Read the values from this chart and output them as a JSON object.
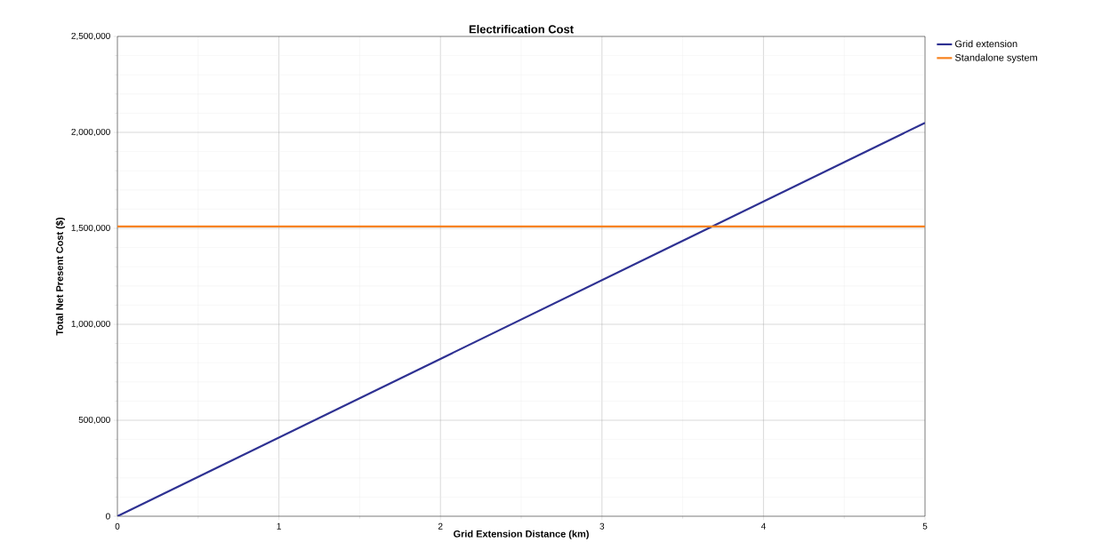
{
  "chart_data": {
    "type": "line",
    "title": "Electrification Cost",
    "xlabel": "Grid Extension Distance (km)",
    "ylabel": "Total Net Present Cost ($)",
    "x": [
      0,
      5
    ],
    "series": [
      {
        "name": "Grid extension",
        "color": "#2e3192",
        "values": [
          0,
          2050000
        ]
      },
      {
        "name": "Standalone system",
        "color": "#f7821e",
        "values": [
          1510000,
          1510000
        ]
      }
    ],
    "xlim": [
      0,
      5
    ],
    "xticks": [
      0,
      1,
      2,
      3,
      4,
      5
    ],
    "ylim": [
      0,
      2500000
    ],
    "yticks": [
      {
        "value": 0,
        "label": "0"
      },
      {
        "value": 500000,
        "label": "500,000"
      },
      {
        "value": 1000000,
        "label": "1,000,000"
      },
      {
        "value": 1500000,
        "label": "1,500,000"
      },
      {
        "value": 2000000,
        "label": "2,000,000"
      },
      {
        "value": 2500000,
        "label": "2,500,000"
      }
    ],
    "grid": true,
    "legend": "top right",
    "marker": "none",
    "line_style": "solid"
  }
}
